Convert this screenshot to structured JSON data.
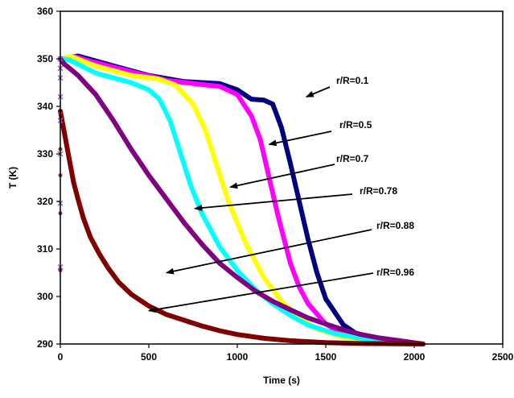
{
  "chart_data": {
    "type": "line",
    "xlabel": "Time (s)",
    "ylabel": "T (K)",
    "xlim": [
      0,
      2500
    ],
    "ylim": [
      290,
      360
    ],
    "xticks": [
      "0",
      "500",
      "1000",
      "1500",
      "2000",
      "2500"
    ],
    "yticks": [
      "290",
      "300",
      "310",
      "320",
      "330",
      "340",
      "350",
      "360"
    ],
    "grid": false,
    "series": [
      {
        "name": "r/R=0.1",
        "color": "#000080",
        "points": [
          [
            0,
            350
          ],
          [
            100,
            350.6
          ],
          [
            300,
            348.5
          ],
          [
            500,
            346.5
          ],
          [
            700,
            345.2
          ],
          [
            900,
            344.8
          ],
          [
            1000,
            343.5
          ],
          [
            1080,
            341.5
          ],
          [
            1150,
            341.3
          ],
          [
            1200,
            340.5
          ],
          [
            1250,
            335.5
          ],
          [
            1300,
            328
          ],
          [
            1350,
            320
          ],
          [
            1400,
            312
          ],
          [
            1450,
            305
          ],
          [
            1500,
            299.5
          ],
          [
            1600,
            294
          ],
          [
            1700,
            291.5
          ],
          [
            1800,
            290.6
          ],
          [
            1900,
            290.2
          ],
          [
            2050,
            290
          ]
        ]
      },
      {
        "name": "r/R=0.5",
        "color": "#FF00FF",
        "points": [
          [
            0,
            350
          ],
          [
            80,
            350.5
          ],
          [
            200,
            349.2
          ],
          [
            400,
            347.3
          ],
          [
            600,
            345.5
          ],
          [
            800,
            344.6
          ],
          [
            900,
            344.2
          ],
          [
            1000,
            342.5
          ],
          [
            1080,
            338
          ],
          [
            1130,
            333
          ],
          [
            1180,
            325
          ],
          [
            1230,
            317
          ],
          [
            1300,
            307
          ],
          [
            1350,
            302
          ],
          [
            1400,
            298.5
          ],
          [
            1500,
            294.2
          ],
          [
            1600,
            292
          ],
          [
            1700,
            291
          ],
          [
            1850,
            290.3
          ],
          [
            2050,
            290
          ]
        ]
      },
      {
        "name": "r/R=0.7",
        "color": "#FFFF00",
        "points": [
          [
            0,
            350
          ],
          [
            60,
            350.5
          ],
          [
            200,
            348.5
          ],
          [
            400,
            346.5
          ],
          [
            550,
            345.8
          ],
          [
            650,
            344.5
          ],
          [
            750,
            340.5
          ],
          [
            820,
            335
          ],
          [
            880,
            328
          ],
          [
            950,
            320
          ],
          [
            1050,
            311
          ],
          [
            1150,
            304
          ],
          [
            1250,
            299
          ],
          [
            1350,
            295.5
          ],
          [
            1450,
            293.2
          ],
          [
            1600,
            291.4
          ],
          [
            1800,
            290.5
          ],
          [
            2050,
            290
          ]
        ]
      },
      {
        "name": "r/R=0.78",
        "color": "#00FFFF",
        "points": [
          [
            0,
            350
          ],
          [
            50,
            349.8
          ],
          [
            200,
            347
          ],
          [
            400,
            345
          ],
          [
            500,
            343.5
          ],
          [
            560,
            341.5
          ],
          [
            620,
            337
          ],
          [
            680,
            330
          ],
          [
            740,
            323
          ],
          [
            800,
            317.5
          ],
          [
            900,
            310.5
          ],
          [
            1000,
            305.5
          ],
          [
            1100,
            301.5
          ],
          [
            1200,
            298.5
          ],
          [
            1300,
            296
          ],
          [
            1400,
            294
          ],
          [
            1550,
            292.2
          ],
          [
            1700,
            291.2
          ],
          [
            1900,
            290.4
          ],
          [
            2050,
            290
          ]
        ]
      },
      {
        "name": "r/R=0.88",
        "color": "#800080",
        "points": [
          [
            0,
            350
          ],
          [
            20,
            349
          ],
          [
            100,
            346.5
          ],
          [
            200,
            342.5
          ],
          [
            300,
            337
          ],
          [
            400,
            331
          ],
          [
            500,
            325.5
          ],
          [
            600,
            320.5
          ],
          [
            700,
            315.5
          ],
          [
            800,
            311
          ],
          [
            900,
            307
          ],
          [
            1000,
            304
          ],
          [
            1100,
            301.2
          ],
          [
            1200,
            299
          ],
          [
            1300,
            297.2
          ],
          [
            1400,
            295.5
          ],
          [
            1500,
            294.2
          ],
          [
            1600,
            293
          ],
          [
            1700,
            292
          ],
          [
            1800,
            291.3
          ],
          [
            1900,
            290.8
          ],
          [
            2050,
            290
          ]
        ]
      },
      {
        "name": "r/R=0.96",
        "color": "#800000",
        "points": [
          [
            0,
            339
          ],
          [
            10,
            337
          ],
          [
            30,
            333
          ],
          [
            50,
            329
          ],
          [
            75,
            324
          ],
          [
            100,
            320.5
          ],
          [
            130,
            316.5
          ],
          [
            170,
            312.5
          ],
          [
            220,
            309
          ],
          [
            270,
            306
          ],
          [
            330,
            303
          ],
          [
            400,
            300.5
          ],
          [
            500,
            298
          ],
          [
            600,
            296.2
          ],
          [
            700,
            295
          ],
          [
            800,
            293.8
          ],
          [
            900,
            292.8
          ],
          [
            1000,
            292
          ],
          [
            1150,
            291.2
          ],
          [
            1300,
            290.7
          ],
          [
            1500,
            290.3
          ],
          [
            1700,
            290.1
          ],
          [
            2050,
            290
          ]
        ]
      }
    ],
    "markers_at_zero": [
      {
        "color": "#9966CC",
        "y": [
          306.2,
          319.6,
          330,
          337,
          342,
          346,
          348,
          350
        ]
      },
      {
        "color": "#993333",
        "y": [
          305.5,
          317.5,
          325.5,
          331,
          338.5
        ]
      }
    ],
    "annotations": [
      {
        "text": "r/R=0.1",
        "series": 0,
        "target": [
          1390,
          342
        ]
      },
      {
        "text": "r/R=0.5",
        "series": 1,
        "target": [
          1180,
          332
        ]
      },
      {
        "text": "r/R=0.7",
        "series": 2,
        "target": [
          960,
          323
        ]
      },
      {
        "text": "r/R=0.78",
        "series": 3,
        "target": [
          760,
          318.5
        ]
      },
      {
        "text": "r/R=0.88",
        "series": 4,
        "target": [
          600,
          305
        ]
      },
      {
        "text": "r/R=0.96",
        "series": 5,
        "target": [
          500,
          297
        ]
      }
    ]
  }
}
